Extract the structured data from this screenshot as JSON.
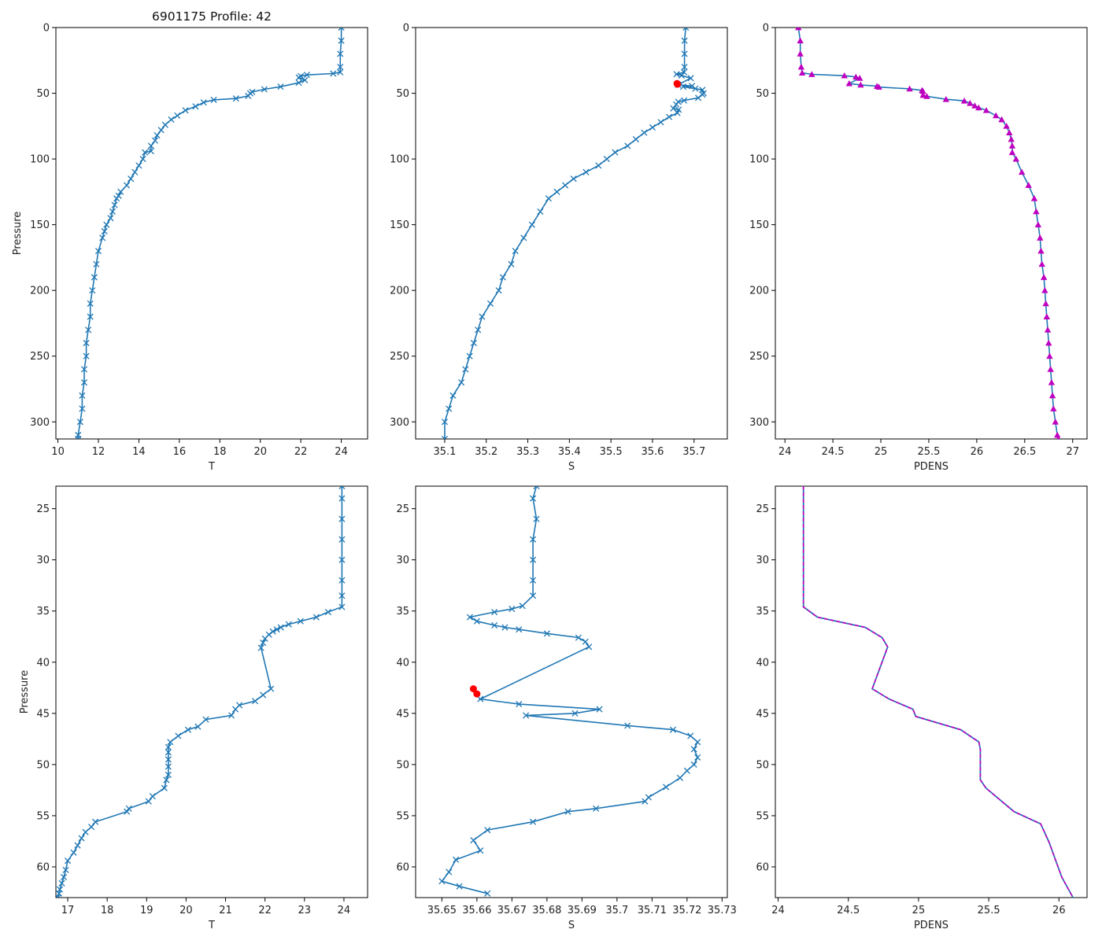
{
  "figure_title": "6901175 Profile: 42",
  "colors": {
    "series": "#1f77b4",
    "pdens": "#c000c0",
    "flag": "#ff0000",
    "axis": "#000000",
    "background": "#ffffff"
  },
  "chart_data": [
    {
      "type": "line",
      "title": "6901175 Profile: 42",
      "xlabel": "T",
      "ylabel": "Pressure",
      "xlim": [
        9.9,
        25.3
      ],
      "ylim": [
        313,
        0
      ],
      "y_inverted": true,
      "xticks": [
        10,
        12,
        14,
        16,
        18,
        20,
        22,
        24
      ],
      "yticks": [
        0,
        50,
        100,
        150,
        200,
        250,
        300
      ],
      "marker": "x",
      "color": "#1f77b4",
      "series": [
        {
          "name": "T",
          "y": [
            0,
            10,
            20,
            30,
            34,
            35,
            36,
            37,
            38,
            40,
            42,
            45,
            47,
            49,
            50,
            52,
            54,
            55,
            57,
            60,
            63,
            67,
            70,
            74,
            78,
            82,
            86,
            90,
            94,
            95,
            100,
            105,
            110,
            115,
            120,
            125,
            128,
            130,
            135,
            140,
            145,
            150,
            155,
            160,
            170,
            180,
            190,
            200,
            210,
            220,
            230,
            240,
            250,
            260,
            270,
            280,
            290,
            300,
            310,
            313
          ],
          "x": [
            24.0,
            24.0,
            23.95,
            23.95,
            23.95,
            23.6,
            22.3,
            22.0,
            21.9,
            22.2,
            21.9,
            21.0,
            20.2,
            19.6,
            19.5,
            19.4,
            18.8,
            17.7,
            17.2,
            16.8,
            16.3,
            15.9,
            15.6,
            15.3,
            15.1,
            14.9,
            14.8,
            14.6,
            14.6,
            14.3,
            14.2,
            14.0,
            13.8,
            13.6,
            13.4,
            13.1,
            13.0,
            12.9,
            12.8,
            12.7,
            12.6,
            12.4,
            12.3,
            12.2,
            12.0,
            11.9,
            11.8,
            11.7,
            11.6,
            11.6,
            11.5,
            11.4,
            11.4,
            11.3,
            11.3,
            11.2,
            11.2,
            11.1,
            11.0,
            11.0
          ]
        }
      ]
    },
    {
      "type": "line",
      "xlabel": "S",
      "ylabel": "",
      "xlim": [
        35.03,
        35.78
      ],
      "ylim": [
        313,
        0
      ],
      "y_inverted": true,
      "xticks": [
        35.1,
        35.2,
        35.3,
        35.4,
        35.5,
        35.6,
        35.7
      ],
      "yticks": [
        0,
        50,
        100,
        150,
        200,
        250,
        300
      ],
      "marker": "x",
      "color": "#1f77b4",
      "series": [
        {
          "name": "S",
          "y": [
            0,
            10,
            20,
            30,
            34,
            35.5,
            36.5,
            38.5,
            43.5,
            44.5,
            45,
            46.5,
            47.5,
            50,
            51,
            53.5,
            55.5,
            56.5,
            58.5,
            61.5,
            62.5,
            65,
            68,
            72,
            76,
            80,
            85,
            90,
            95,
            100,
            105,
            110,
            115,
            120,
            125,
            130,
            140,
            150,
            160,
            170,
            180,
            190,
            200,
            210,
            220,
            230,
            240,
            250,
            260,
            270,
            280,
            290,
            300,
            313
          ],
          "x": [
            35.68,
            35.677,
            35.677,
            35.677,
            35.676,
            35.658,
            35.67,
            35.692,
            35.662,
            35.695,
            35.674,
            35.703,
            35.72,
            35.723,
            35.72,
            35.71,
            35.676,
            35.662,
            35.657,
            35.65,
            35.663,
            35.66,
            35.64,
            35.62,
            35.6,
            35.58,
            35.56,
            35.54,
            35.51,
            35.49,
            35.47,
            35.44,
            35.41,
            35.39,
            35.37,
            35.35,
            35.33,
            35.31,
            35.29,
            35.27,
            35.26,
            35.24,
            35.23,
            35.21,
            35.19,
            35.18,
            35.17,
            35.16,
            35.15,
            35.14,
            35.12,
            35.11,
            35.1,
            35.1
          ]
        }
      ],
      "flags": [
        {
          "x": 35.659,
          "y": 42.6
        },
        {
          "x": 35.66,
          "y": 43.1
        }
      ]
    },
    {
      "type": "line",
      "xlabel": "PDENS",
      "ylabel": "",
      "xlim": [
        23.9,
        27.15
      ],
      "ylim": [
        313,
        0
      ],
      "y_inverted": true,
      "xticks": [
        24.0,
        24.5,
        25.0,
        25.5,
        26.0,
        26.5,
        27.0
      ],
      "yticks": [
        0,
        50,
        100,
        150,
        200,
        250,
        300
      ],
      "marker": "^",
      "color": "#c000c0",
      "series": [
        {
          "name": "PDENS",
          "y": [
            0,
            10,
            20,
            30,
            34.5,
            35.6,
            36.6,
            37.6,
            38.5,
            42.6,
            43.6,
            44.6,
            45.3,
            46.6,
            47.8,
            48.5,
            51.5,
            52.3,
            54.6,
            55.8,
            57.6,
            59.5,
            61,
            63,
            67,
            70,
            75,
            80,
            85,
            90,
            95,
            100,
            110,
            120,
            130,
            140,
            150,
            160,
            170,
            180,
            190,
            200,
            210,
            220,
            230,
            240,
            250,
            260,
            270,
            280,
            290,
            300,
            310,
            313
          ],
          "x": [
            24.14,
            24.16,
            24.16,
            24.17,
            24.18,
            24.28,
            24.62,
            24.74,
            24.78,
            24.67,
            24.79,
            24.96,
            24.98,
            25.3,
            25.43,
            25.44,
            25.44,
            25.48,
            25.68,
            25.87,
            25.93,
            25.98,
            26.02,
            26.1,
            26.2,
            26.26,
            26.31,
            26.34,
            26.36,
            26.37,
            26.37,
            26.41,
            26.47,
            26.54,
            26.6,
            26.62,
            26.64,
            26.66,
            26.67,
            26.68,
            26.7,
            26.71,
            26.72,
            26.73,
            26.74,
            26.75,
            26.76,
            26.77,
            26.78,
            26.79,
            26.8,
            26.82,
            26.84,
            26.85
          ]
        }
      ]
    },
    {
      "type": "line",
      "xlabel": "T",
      "ylabel": "Pressure",
      "xlim": [
        16.7,
        24.6
      ],
      "ylim": [
        63.0,
        22.8
      ],
      "y_inverted": true,
      "xticks": [
        17,
        18,
        19,
        20,
        21,
        22,
        23,
        24
      ],
      "yticks": [
        25,
        30,
        35,
        40,
        45,
        50,
        55,
        60
      ],
      "marker": "x",
      "color": "#1f77b4",
      "series": [
        {
          "name": "T",
          "y": [
            22.8,
            24,
            26,
            28,
            30,
            32,
            33.5,
            34.6,
            35.1,
            35.6,
            36,
            36.3,
            36.6,
            36.8,
            37,
            37.3,
            37.7,
            38.1,
            38.6,
            42.6,
            43.2,
            43.8,
            44.2,
            44.6,
            45.2,
            45.6,
            46.3,
            46.6,
            47.2,
            47.8,
            48.3,
            48.8,
            49.5,
            50.2,
            51,
            51.5,
            52.3,
            53.1,
            53.6,
            54.3,
            54.6,
            55.6,
            56.1,
            56.6,
            57.2,
            57.9,
            58.6,
            59.4,
            60.3,
            61,
            61.6,
            62.2,
            62.6,
            63
          ],
          "x": [
            23.95,
            23.95,
            23.95,
            23.95,
            23.95,
            23.95,
            23.95,
            23.95,
            23.6,
            23.3,
            22.9,
            22.6,
            22.4,
            22.3,
            22.2,
            22.1,
            22.0,
            21.95,
            21.9,
            22.15,
            21.95,
            21.75,
            21.35,
            21.25,
            21.15,
            20.5,
            20.3,
            20.05,
            19.8,
            19.6,
            19.55,
            19.55,
            19.55,
            19.55,
            19.55,
            19.5,
            19.45,
            19.15,
            19.05,
            18.55,
            18.5,
            17.7,
            17.6,
            17.45,
            17.35,
            17.25,
            17.15,
            17.0,
            16.95,
            16.9,
            16.85,
            16.8,
            16.78,
            16.75
          ]
        }
      ]
    },
    {
      "type": "line",
      "xlabel": "S",
      "ylabel": "",
      "xlim": [
        35.6425,
        35.7315
      ],
      "ylim": [
        63.0,
        22.8
      ],
      "y_inverted": true,
      "xticks": [
        35.65,
        35.66,
        35.67,
        35.68,
        35.69,
        35.7,
        35.71,
        35.72,
        35.73
      ],
      "yticks": [
        25,
        30,
        35,
        40,
        45,
        50,
        55,
        60
      ],
      "marker": "x",
      "color": "#1f77b4",
      "series": [
        {
          "name": "S",
          "y": [
            22.8,
            24,
            26,
            28,
            30,
            32,
            33.5,
            34.5,
            34.8,
            35.1,
            35.6,
            36,
            36.4,
            36.6,
            36.8,
            37.2,
            37.6,
            38,
            38.5,
            43.6,
            44.1,
            44.6,
            45,
            45.2,
            46.2,
            46.6,
            47.2,
            47.8,
            48.5,
            49.3,
            50,
            50.6,
            51.3,
            52.2,
            53.2,
            53.6,
            54.3,
            54.6,
            55.6,
            56.4,
            57.4,
            58.4,
            59.3,
            60.5,
            61.4,
            61.9,
            62.6
          ],
          "x": [
            35.677,
            35.676,
            35.677,
            35.676,
            35.676,
            35.676,
            35.676,
            35.673,
            35.67,
            35.665,
            35.658,
            35.66,
            35.665,
            35.668,
            35.672,
            35.68,
            35.689,
            35.691,
            35.692,
            35.661,
            35.672,
            35.695,
            35.688,
            35.674,
            35.703,
            35.716,
            35.721,
            35.723,
            35.722,
            35.723,
            35.722,
            35.72,
            35.718,
            35.714,
            35.709,
            35.708,
            35.694,
            35.686,
            35.676,
            35.663,
            35.659,
            35.661,
            35.654,
            35.652,
            35.65,
            35.655,
            35.663
          ]
        }
      ],
      "flags": [
        {
          "x": 35.659,
          "y": 42.6
        },
        {
          "x": 35.66,
          "y": 43.1
        }
      ]
    },
    {
      "type": "line",
      "xlabel": "PDENS",
      "ylabel": "",
      "xlim": [
        23.98,
        26.2
      ],
      "ylim": [
        63.0,
        22.8
      ],
      "y_inverted": true,
      "xticks": [
        24.0,
        24.5,
        25.0,
        25.5,
        26.0
      ],
      "yticks": [
        25,
        30,
        35,
        40,
        45,
        50,
        55,
        60
      ],
      "marker": "none",
      "color": "#c000c0",
      "line_style": "dashed over solid",
      "series": [
        {
          "name": "PDENS",
          "y": [
            22.8,
            30,
            34.6,
            35.6,
            36.6,
            37.6,
            38.5,
            42.6,
            43.6,
            44.6,
            45.3,
            46.6,
            47.8,
            48.5,
            51.5,
            52.3,
            54.6,
            55.8,
            57.6,
            59.5,
            61,
            63
          ],
          "x": [
            24.18,
            24.18,
            24.18,
            24.28,
            24.62,
            24.74,
            24.78,
            24.67,
            24.79,
            24.96,
            24.98,
            25.3,
            25.43,
            25.44,
            25.44,
            25.48,
            25.68,
            25.87,
            25.93,
            25.98,
            26.02,
            26.1
          ]
        }
      ]
    }
  ]
}
